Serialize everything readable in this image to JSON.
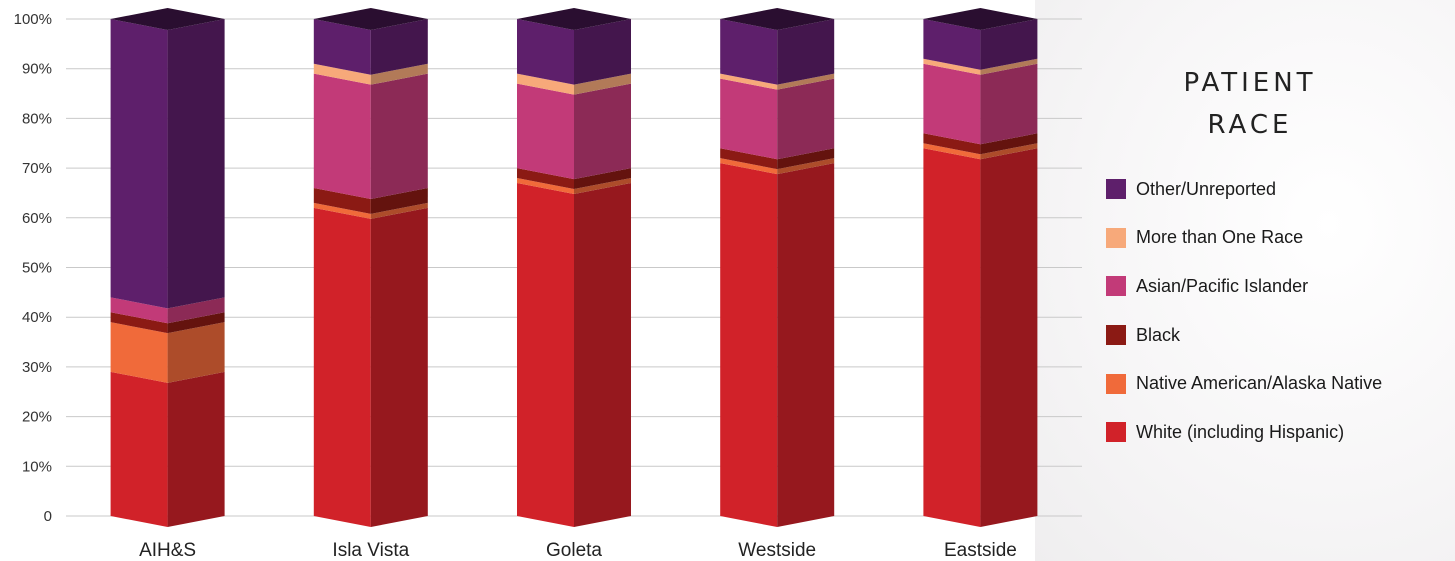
{
  "chart_data": {
    "type": "bar",
    "stacked": true,
    "style": "3d-column",
    "categories": [
      "AIH&S",
      "Isla Vista",
      "Goleta",
      "Westside",
      "Eastside"
    ],
    "series": [
      {
        "name": "White (including Hispanic)",
        "color": "#d12229",
        "values": [
          29,
          62,
          67,
          71,
          74
        ]
      },
      {
        "name": "Native American/Alaska Native",
        "color": "#f06a3a",
        "values": [
          10,
          1,
          1,
          1,
          1
        ]
      },
      {
        "name": "Black",
        "color": "#8b1a14",
        "values": [
          2,
          3,
          2,
          2,
          2
        ]
      },
      {
        "name": "Asian/Pacific Islander",
        "color": "#c23a78",
        "values": [
          3,
          23,
          17,
          14,
          14
        ]
      },
      {
        "name": "More than One Race",
        "color": "#f7a97a",
        "values": [
          0,
          2,
          2,
          1,
          1
        ]
      },
      {
        "name": "Other/Unreported",
        "color": "#5e1f6b",
        "values": [
          56,
          9,
          11,
          11,
          8
        ]
      }
    ],
    "ylim": [
      0,
      100
    ],
    "yticks": [
      "0",
      "10%",
      "20%",
      "30%",
      "40%",
      "50%",
      "60%",
      "70%",
      "80%",
      "90%",
      "100%"
    ],
    "grid": true,
    "legend_title": "PATIENT\nRACE",
    "legend_position": "right"
  }
}
